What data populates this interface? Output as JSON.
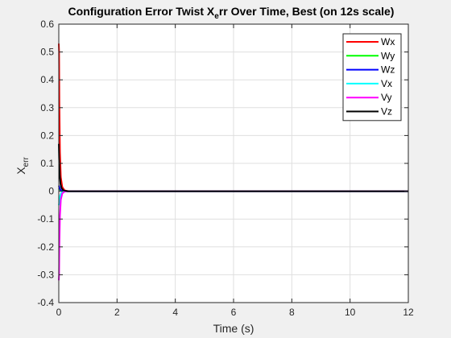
{
  "chart_data": {
    "type": "line",
    "title": "Configuration Error Twist X_err Over Time, Best (on 12s scale)",
    "title_parts": {
      "before": "Configuration Error Twist X",
      "subscript": "e",
      "after": "rr Over Time, Best (on 12s scale)"
    },
    "xlabel": "Time (s)",
    "ylabel": "X_err",
    "ylabel_parts": {
      "base": "X",
      "subscript": "err"
    },
    "xlim": [
      0,
      12
    ],
    "ylim": [
      -0.4,
      0.6
    ],
    "xticks": [
      0,
      2,
      4,
      6,
      8,
      10,
      12
    ],
    "yticks": [
      -0.4,
      -0.3,
      -0.2,
      -0.1,
      0,
      0.1,
      0.2,
      0.3,
      0.4,
      0.5,
      0.6
    ],
    "xtick_labels": [
      "0",
      "2",
      "4",
      "6",
      "8",
      "10",
      "12"
    ],
    "ytick_labels": [
      "-0.4",
      "-0.3",
      "-0.2",
      "-0.1",
      "0",
      "0.1",
      "0.2",
      "0.3",
      "0.4",
      "0.5",
      "0.6"
    ],
    "grid": true,
    "legend_position": "top-right",
    "series": [
      {
        "name": "Wx",
        "color": "#ff0000",
        "points": [
          [
            0,
            0.53
          ],
          [
            0.01,
            0.5
          ],
          [
            0.02,
            0.32
          ],
          [
            0.04,
            0.14
          ],
          [
            0.07,
            0.05
          ],
          [
            0.12,
            0.015
          ],
          [
            0.2,
            0.003
          ],
          [
            0.35,
            0.0
          ],
          [
            12,
            0.0
          ]
        ]
      },
      {
        "name": "Wy",
        "color": "#00ff00",
        "points": [
          [
            0,
            0.01
          ],
          [
            0.02,
            0.008
          ],
          [
            0.05,
            0.004
          ],
          [
            0.1,
            0.001
          ],
          [
            0.3,
            0.0
          ],
          [
            12,
            0.0
          ]
        ]
      },
      {
        "name": "Wz",
        "color": "#0000ff",
        "points": [
          [
            0,
            0.02
          ],
          [
            0.02,
            0.015
          ],
          [
            0.05,
            0.006
          ],
          [
            0.1,
            0.001
          ],
          [
            0.3,
            0.0
          ],
          [
            12,
            0.0
          ]
        ]
      },
      {
        "name": "Vx",
        "color": "#00ffff",
        "points": [
          [
            0,
            -0.05
          ],
          [
            0.02,
            -0.04
          ],
          [
            0.05,
            -0.015
          ],
          [
            0.1,
            -0.004
          ],
          [
            0.3,
            0.0
          ],
          [
            12,
            0.0
          ]
        ]
      },
      {
        "name": "Vy",
        "color": "#ff00ff",
        "points": [
          [
            0,
            -0.32
          ],
          [
            0.01,
            -0.3
          ],
          [
            0.02,
            -0.2
          ],
          [
            0.04,
            -0.09
          ],
          [
            0.07,
            -0.03
          ],
          [
            0.12,
            -0.008
          ],
          [
            0.2,
            -0.001
          ],
          [
            0.35,
            0.0
          ],
          [
            12,
            0.0
          ]
        ]
      },
      {
        "name": "Vz",
        "color": "#000000",
        "points": [
          [
            0,
            0.17
          ],
          [
            0.01,
            0.12
          ],
          [
            0.03,
            0.06
          ],
          [
            0.06,
            0.025
          ],
          [
            0.1,
            0.01
          ],
          [
            0.16,
            0.003
          ],
          [
            0.3,
            0.0
          ],
          [
            12,
            0.0
          ]
        ]
      }
    ]
  }
}
